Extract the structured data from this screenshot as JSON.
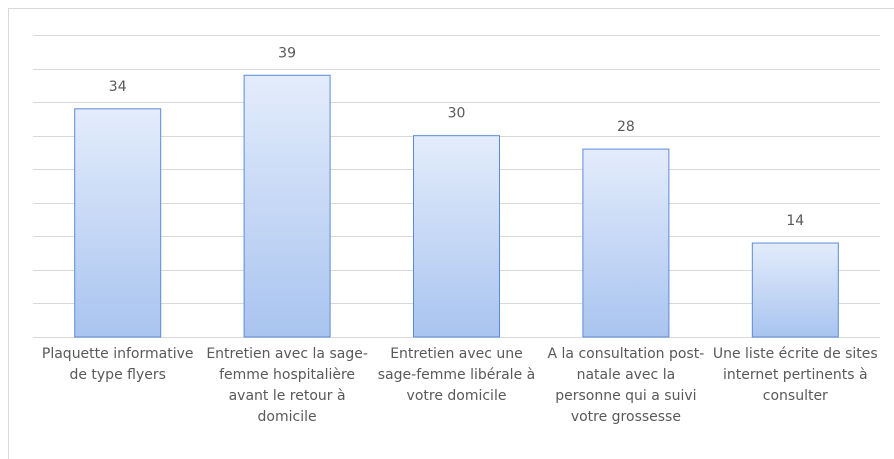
{
  "chart_data": {
    "type": "bar",
    "categories": [
      "Plaquette informative de type flyers",
      "Entretien avec la sage-femme hospitalière avant le retour à domicile",
      "Entretien avec une sage-femme libérale à votre domicile",
      "A la consultation post-natale avec la personne qui a suivi votre grossesse",
      "Une liste écrite de sites internet pertinents à consulter"
    ],
    "values": [
      34,
      39,
      30,
      28,
      14
    ],
    "color": "#a9c4f0",
    "ylim": [
      0,
      45
    ],
    "yticks": [
      0,
      5,
      10,
      15,
      20,
      25,
      30,
      35,
      40,
      45
    ],
    "grid": true
  }
}
